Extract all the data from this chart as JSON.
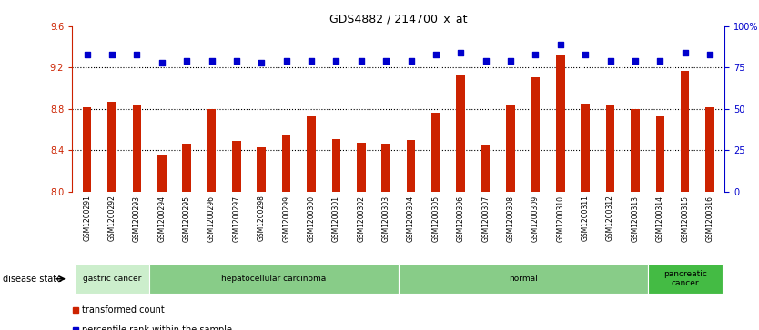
{
  "title": "GDS4882 / 214700_x_at",
  "samples": [
    "GSM1200291",
    "GSM1200292",
    "GSM1200293",
    "GSM1200294",
    "GSM1200295",
    "GSM1200296",
    "GSM1200297",
    "GSM1200298",
    "GSM1200299",
    "GSM1200300",
    "GSM1200301",
    "GSM1200302",
    "GSM1200303",
    "GSM1200304",
    "GSM1200305",
    "GSM1200306",
    "GSM1200307",
    "GSM1200308",
    "GSM1200309",
    "GSM1200310",
    "GSM1200311",
    "GSM1200312",
    "GSM1200313",
    "GSM1200314",
    "GSM1200315",
    "GSM1200316"
  ],
  "bar_values": [
    8.82,
    8.87,
    8.84,
    8.35,
    8.46,
    8.8,
    8.49,
    8.43,
    8.55,
    8.73,
    8.51,
    8.47,
    8.46,
    8.5,
    8.76,
    9.13,
    8.45,
    8.84,
    9.11,
    9.32,
    8.85,
    8.84,
    8.8,
    8.73,
    9.17,
    8.82
  ],
  "percentile_values": [
    83,
    83,
    83,
    78,
    79,
    79,
    79,
    78,
    79,
    79,
    79,
    79,
    79,
    79,
    83,
    84,
    79,
    79,
    83,
    89,
    83,
    79,
    79,
    79,
    84,
    83
  ],
  "ylim_left": [
    8.0,
    9.6
  ],
  "ylim_right": [
    0,
    100
  ],
  "yticks_left": [
    8.0,
    8.4,
    8.8,
    9.2,
    9.6
  ],
  "yticks_right": [
    0,
    25,
    50,
    75,
    100
  ],
  "bar_color": "#cc2200",
  "dot_color": "#0000cc",
  "background_color": "#ffffff",
  "plot_bg_color": "#ffffff",
  "tick_bg_color": "#cccccc",
  "disease_groups": [
    {
      "label": "gastric cancer",
      "start": 0,
      "end": 3,
      "color": "#cceecc"
    },
    {
      "label": "hepatocellular carcinoma",
      "start": 3,
      "end": 13,
      "color": "#88cc88"
    },
    {
      "label": "normal",
      "start": 13,
      "end": 23,
      "color": "#88cc88"
    },
    {
      "label": "pancreatic\ncancer",
      "start": 23,
      "end": 26,
      "color": "#44bb44"
    }
  ],
  "legend_items": [
    {
      "label": "transformed count",
      "color": "#cc2200"
    },
    {
      "label": "percentile rank within the sample",
      "color": "#0000cc"
    }
  ],
  "bar_width": 0.35,
  "dot_size": 20,
  "title_fontsize": 9,
  "tick_fontsize": 5.5,
  "label_fontsize": 7,
  "grid_lines": [
    8.4,
    8.8,
    9.2
  ],
  "grid_color": "black",
  "grid_style": "dotted",
  "grid_lw": 0.8
}
